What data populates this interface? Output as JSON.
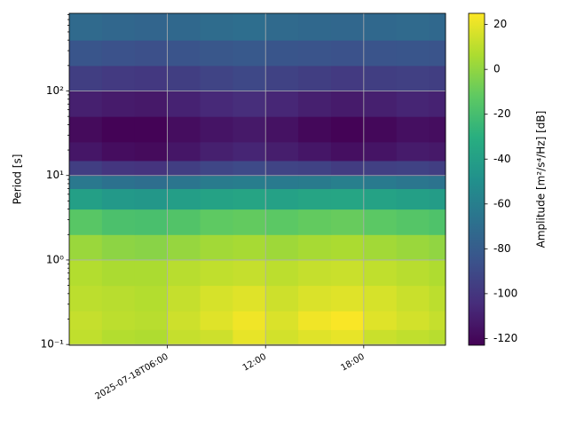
{
  "chart_data": {
    "type": "heatmap",
    "ylabel": "Period [s]",
    "colorbar_label": "Amplitude [m²/s⁴/Hz] [dB]",
    "colormap": "viridis",
    "log_y": true,
    "grid": true,
    "xlim": [
      "2025-07-18T00:00",
      "2025-07-18T23:00"
    ],
    "xticks": [
      {
        "value": "2025-07-18T06:00",
        "label": "2025-07-18T06:00"
      },
      {
        "value": "2025-07-18T12:00",
        "label": "12:00"
      },
      {
        "value": "2025-07-18T18:00",
        "label": "18:00"
      }
    ],
    "ylim": [
      0.098,
      830
    ],
    "yticks": [
      {
        "value": 0.1,
        "label": "10⁻¹"
      },
      {
        "value": 1,
        "label": "10⁰"
      },
      {
        "value": 10,
        "label": "10¹"
      },
      {
        "value": 100,
        "label": "10²"
      }
    ],
    "clim": [
      -123,
      25
    ],
    "cticks": [
      20,
      0,
      -20,
      -40,
      -60,
      -80,
      -100,
      -120
    ],
    "x_edges": [
      "2025-07-18T00:00",
      "2025-07-18T02:00",
      "2025-07-18T04:00",
      "2025-07-18T06:00",
      "2025-07-18T08:00",
      "2025-07-18T10:00",
      "2025-07-18T12:00",
      "2025-07-18T14:00",
      "2025-07-18T16:00",
      "2025-07-18T18:00",
      "2025-07-18T20:00",
      "2025-07-18T22:00",
      "2025-07-18T23:00"
    ],
    "y_edges": [
      0.098,
      0.15,
      0.25,
      0.5,
      1,
      2,
      4,
      7,
      10,
      15,
      25,
      50,
      100,
      200,
      400,
      830
    ],
    "values": [
      [
        11,
        8,
        7,
        12,
        14,
        20,
        15,
        18,
        20,
        13,
        11,
        9
      ],
      [
        12,
        10,
        9,
        14,
        18,
        22,
        17,
        22,
        24,
        18,
        15,
        12
      ],
      [
        10,
        9,
        8,
        12,
        16,
        18,
        14,
        17,
        18,
        16,
        13,
        10
      ],
      [
        8,
        6,
        6,
        9,
        11,
        12,
        10,
        12,
        13,
        11,
        9,
        7
      ],
      [
        2,
        -1,
        -2,
        1,
        4,
        5,
        3,
        5,
        6,
        4,
        2,
        0
      ],
      [
        -14,
        -18,
        -19,
        -16,
        -12,
        -11,
        -13,
        -11,
        -10,
        -13,
        -15,
        -17
      ],
      [
        -40,
        -44,
        -45,
        -41,
        -38,
        -37,
        -39,
        -37,
        -36,
        -38,
        -40,
        -42
      ],
      [
        -64,
        -68,
        -70,
        -66,
        -62,
        -61,
        -63,
        -62,
        -60,
        -63,
        -65,
        -67
      ],
      [
        -96,
        -100,
        -101,
        -96,
        -92,
        -90,
        -93,
        -94,
        -97,
        -95,
        -94,
        -96
      ],
      [
        -114,
        -118,
        -119,
        -114,
        -110,
        -108,
        -111,
        -114,
        -117,
        -115,
        -112,
        -113
      ],
      [
        -119,
        -122,
        -122,
        -118,
        -115,
        -113,
        -116,
        -120,
        -122,
        -120,
        -117,
        -118
      ],
      [
        -110,
        -112,
        -113,
        -109,
        -106,
        -104,
        -107,
        -110,
        -112,
        -110,
        -108,
        -109
      ],
      [
        -96,
        -98,
        -99,
        -96,
        -93,
        -91,
        -94,
        -96,
        -98,
        -96,
        -95,
        -96
      ],
      [
        -84,
        -86,
        -87,
        -85,
        -83,
        -82,
        -84,
        -85,
        -86,
        -85,
        -84,
        -85
      ],
      [
        -72,
        -74,
        -75,
        -73,
        -71,
        -70,
        -72,
        -73,
        -74,
        -73,
        -72,
        -73
      ]
    ]
  }
}
